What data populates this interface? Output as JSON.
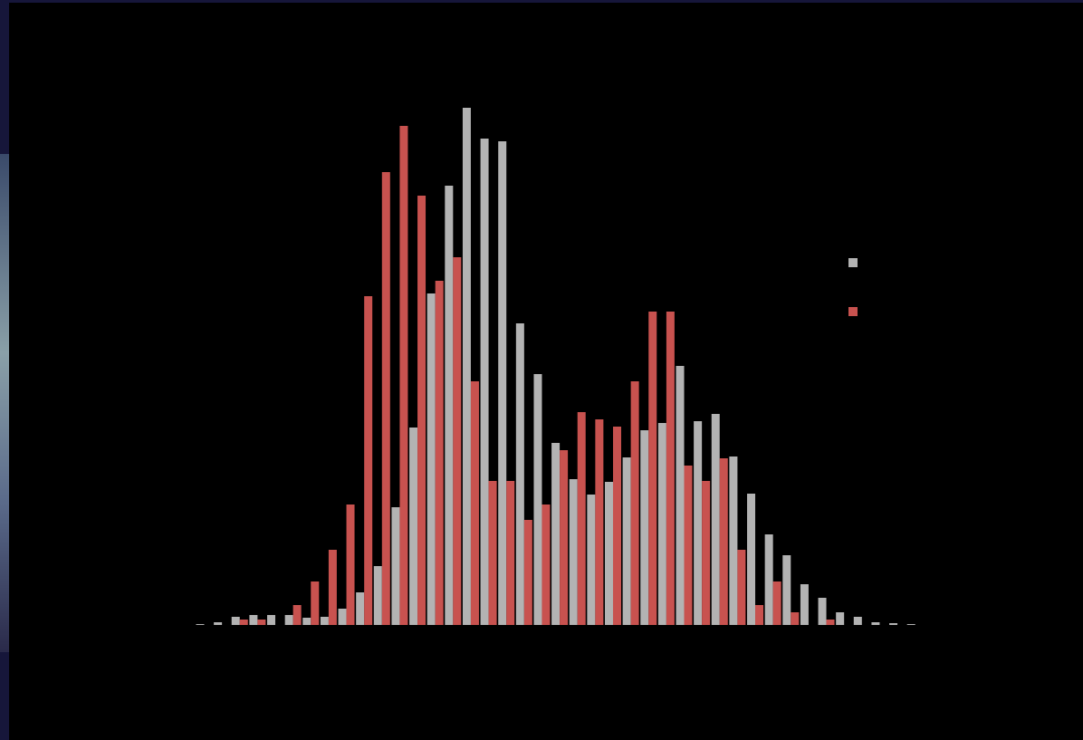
{
  "chart_data": {
    "type": "bar",
    "categories": [
      null,
      null,
      null,
      null,
      null,
      null,
      null,
      null,
      null,
      null,
      null,
      null,
      null,
      null,
      null,
      null,
      null,
      null,
      null,
      null,
      null,
      null,
      null,
      null,
      null,
      null,
      null,
      null,
      null,
      null,
      null,
      null,
      null,
      null,
      null,
      null,
      null,
      null,
      null,
      null,
      null
    ],
    "series": [
      {
        "color": "#b3b3b3",
        "values": [
          0.2,
          0.6,
          1.8,
          2.2,
          2.2,
          2.2,
          1.6,
          1.8,
          3.6,
          7.2,
          13,
          26,
          43.6,
          73.2,
          97,
          114.2,
          107.4,
          106.8,
          66.6,
          55.4,
          40.2,
          32.2,
          28.8,
          31.6,
          37,
          43,
          44.6,
          57.2,
          45,
          46.6,
          37.2,
          29,
          20,
          15.4,
          9,
          6,
          2.8,
          1.8,
          0.6,
          0.4,
          0.2
        ]
      },
      {
        "color": "#c8524f",
        "values": [
          0,
          0,
          1.2,
          1.2,
          0,
          4.4,
          9.6,
          16.6,
          26.6,
          72.6,
          100,
          110.2,
          94.8,
          76,
          81.2,
          53.8,
          31.8,
          31.8,
          23.2,
          26.6,
          38.6,
          47,
          45.4,
          43.8,
          53.8,
          69.2,
          69.2,
          35.2,
          31.8,
          36.8,
          16.6,
          4.4,
          9.6,
          2.8,
          0,
          1.2,
          0,
          0,
          0,
          0,
          0
        ]
      }
    ],
    "ylim": [
      0,
      120
    ],
    "legend": "right"
  }
}
